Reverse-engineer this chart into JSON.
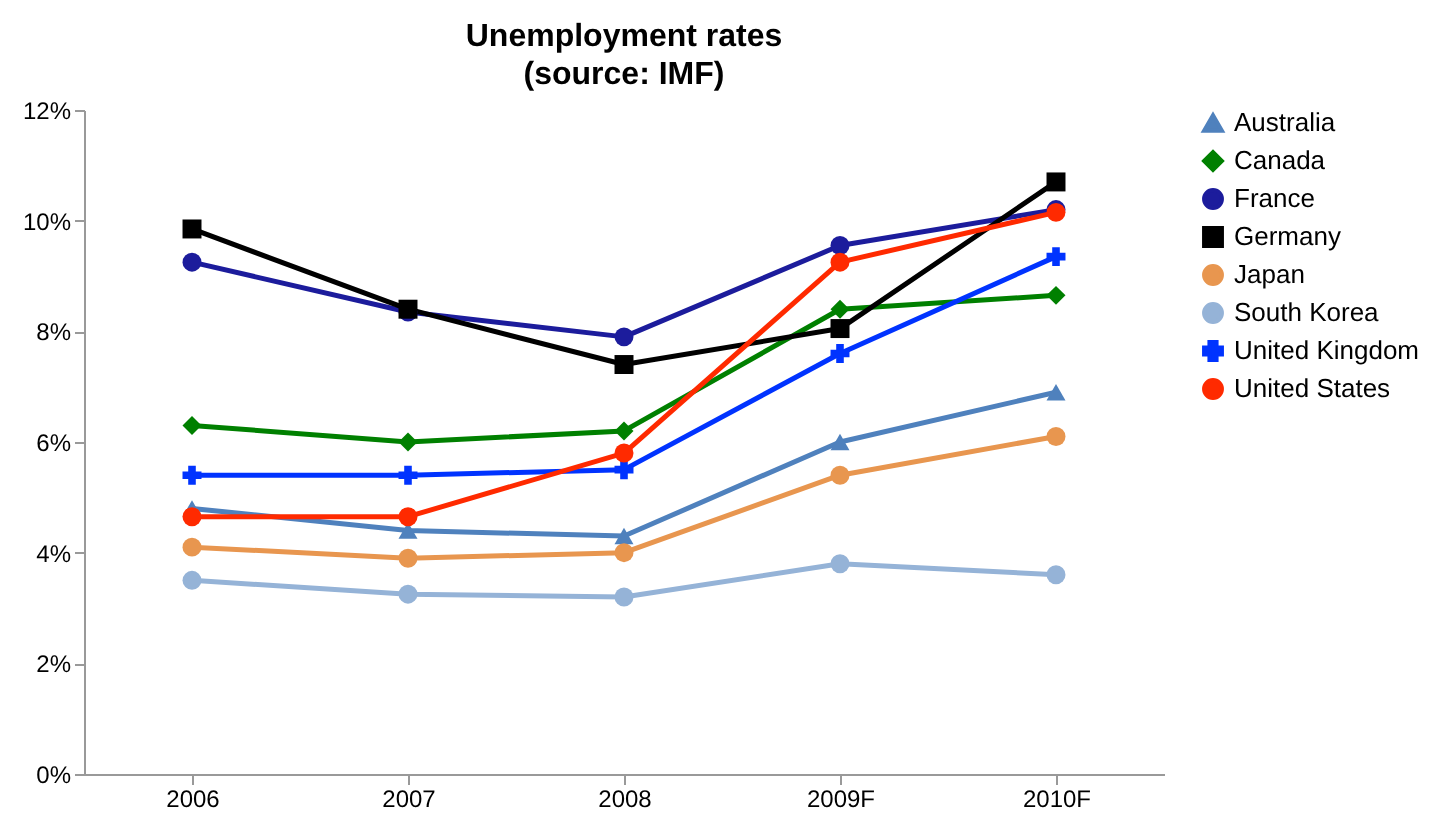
{
  "chart_data": {
    "type": "line",
    "title": "Unemployment rates",
    "subtitle": "(source: IMF)",
    "categories": [
      "2006",
      "2007",
      "2008",
      "2009F",
      "2010F"
    ],
    "ylim": [
      0,
      12
    ],
    "yticks": [
      {
        "value": 0,
        "label": "0%"
      },
      {
        "value": 2,
        "label": "2%"
      },
      {
        "value": 4,
        "label": "4%"
      },
      {
        "value": 6,
        "label": "6%"
      },
      {
        "value": 8,
        "label": "8%"
      },
      {
        "value": 10,
        "label": "10%"
      },
      {
        "value": 12,
        "label": "12%"
      }
    ],
    "grid": false,
    "legend": "right",
    "line_style": "solid",
    "series": [
      {
        "name": "Australia",
        "color": "#4f81bd",
        "marker": "triangle",
        "values": [
          4.8,
          4.4,
          4.3,
          6.0,
          6.9
        ]
      },
      {
        "name": "Canada",
        "color": "#008000",
        "marker": "diamond",
        "values": [
          6.3,
          6.0,
          6.2,
          8.4,
          8.65
        ]
      },
      {
        "name": "France",
        "color": "#1c1c9c",
        "marker": "circle",
        "values": [
          9.25,
          8.35,
          7.9,
          9.55,
          10.2
        ]
      },
      {
        "name": "Germany",
        "color": "#000000",
        "marker": "square",
        "values": [
          9.85,
          8.4,
          7.4,
          8.05,
          10.7
        ]
      },
      {
        "name": "Japan",
        "color": "#e8964f",
        "marker": "circle",
        "values": [
          4.1,
          3.9,
          4.0,
          5.4,
          6.1
        ]
      },
      {
        "name": "South Korea",
        "color": "#95b3d7",
        "marker": "circle",
        "values": [
          3.5,
          3.25,
          3.2,
          3.8,
          3.6
        ]
      },
      {
        "name": "United Kingdom",
        "color": "#0033ff",
        "marker": "cross",
        "values": [
          5.4,
          5.4,
          5.5,
          7.6,
          9.35
        ]
      },
      {
        "name": "United States",
        "color": "#ff2a00",
        "marker": "circle",
        "values": [
          4.65,
          4.65,
          5.8,
          9.25,
          10.15
        ]
      }
    ]
  }
}
